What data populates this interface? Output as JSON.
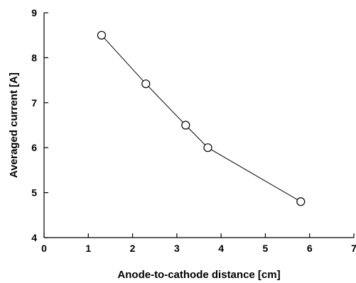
{
  "chart_data": {
    "type": "line",
    "title": "",
    "xlabel": "Anode-to-cathode distance [cm]",
    "ylabel": "Averaged current [A]",
    "xlim": [
      0,
      7
    ],
    "ylim": [
      4,
      9
    ],
    "x_ticks": [
      "0",
      "1",
      "2",
      "3",
      "4",
      "5",
      "6",
      "7"
    ],
    "y_ticks": [
      "4",
      "5",
      "6",
      "7",
      "8",
      "9"
    ],
    "grid": false,
    "marker": "open-circle",
    "series": [
      {
        "x": [
          1.3,
          2.3,
          3.2,
          3.7,
          5.8
        ],
        "y": [
          8.5,
          7.42,
          6.5,
          6.0,
          4.8
        ]
      }
    ]
  }
}
